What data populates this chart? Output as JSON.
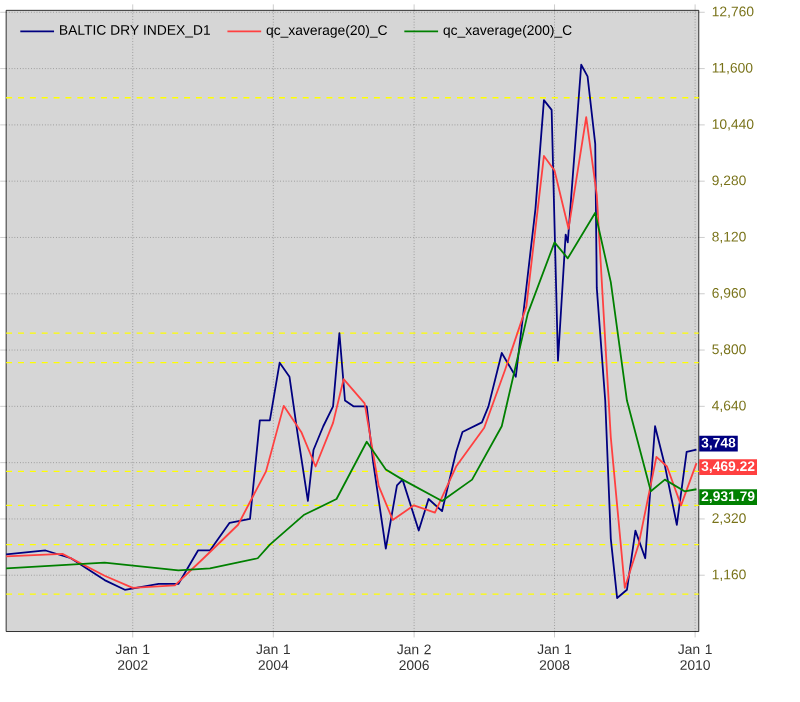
{
  "chart_data": {
    "type": "line",
    "xlim": [
      "2000-03-14",
      "2010-01-20"
    ],
    "ylim": [
      0,
      12800
    ],
    "xticks": [
      {
        "value": "2002-01-01",
        "label": "Jan 1 2002"
      },
      {
        "value": "2004-01-01",
        "label": "Jan 1 2004"
      },
      {
        "value": "2006-01-02",
        "label": "Jan 2 2006"
      },
      {
        "value": "2008-01-01",
        "label": "Jan 1 2008"
      },
      {
        "value": "2010-01-01",
        "label": "Jan 1 2010"
      }
    ],
    "yticks": [
      {
        "value": 1160,
        "label": "1,160"
      },
      {
        "value": 2320,
        "label": "2,320"
      },
      {
        "value": 3480,
        "label": null
      },
      {
        "value": 4640,
        "label": "4,640"
      },
      {
        "value": 5800,
        "label": "5,800"
      },
      {
        "value": 6960,
        "label": "6,960"
      },
      {
        "value": 8120,
        "label": "8,120"
      },
      {
        "value": 9280,
        "label": "9,280"
      },
      {
        "value": 10440,
        "label": "10,440"
      },
      {
        "value": 11600,
        "label": "11,600"
      },
      {
        "value": 12760,
        "label": "12,760"
      }
    ],
    "grid": true,
    "legend": "top left",
    "series": [
      {
        "name": "BALTIC DRY INDEX_D1",
        "color": "#000080",
        "x": [
          "2000-03-14",
          "2000-10-05",
          "2001-02-14",
          "2001-08-08",
          "2001-11-21",
          "2002-05-16",
          "2002-08-26",
          "2002-12-06",
          "2003-02-06",
          "2003-05-19",
          "2003-09-02",
          "2003-10-23",
          "2003-12-14",
          "2004-02-03",
          "2004-03-25",
          "2004-05-05",
          "2004-06-29",
          "2004-07-28",
          "2004-09-17",
          "2004-11-07",
          "2004-12-10",
          "2005-01-08",
          "2005-02-21",
          "2005-05-01",
          "2005-06-03",
          "2005-08-08",
          "2005-10-05",
          "2005-11-03",
          "2006-01-26",
          "2006-03-18",
          "2006-05-27",
          "2006-08-08",
          "2006-09-10",
          "2006-12-20",
          "2007-01-23",
          "2007-04-02",
          "2007-06-14",
          "2007-08-04",
          "2007-09-24",
          "2007-11-07",
          "2007-12-17",
          "2008-01-19",
          "2008-02-28",
          "2008-03-10",
          "2008-05-19",
          "2008-06-21",
          "2008-07-31",
          "2008-08-08",
          "2008-09-21",
          "2008-10-20",
          "2008-11-22",
          "2009-01-12",
          "2009-02-25",
          "2009-04-17",
          "2009-06-07",
          "2009-07-28",
          "2009-09-28",
          "2009-11-18",
          "2010-01-08"
        ],
        "values": [
          1590,
          1670,
          1510,
          1060,
          860,
          980,
          980,
          1670,
          1670,
          2240,
          2320,
          4350,
          4350,
          5540,
          5250,
          4110,
          2690,
          3740,
          4230,
          4640,
          6150,
          4760,
          4640,
          4640,
          3500,
          1710,
          3010,
          3130,
          2080,
          2730,
          2480,
          3700,
          4110,
          4310,
          4640,
          5740,
          5250,
          6960,
          8710,
          10950,
          10750,
          5580,
          8180,
          8020,
          11680,
          11440,
          10050,
          7080,
          4760,
          1910,
          690,
          860,
          2080,
          1510,
          4230,
          3420,
          2200,
          3700,
          3748
        ]
      },
      {
        "name": "qc_xaverage(20)_C",
        "color": "#ff4040",
        "x": [
          "2000-03-14",
          "2001-01-01",
          "2001-08-08",
          "2002-01-01",
          "2002-08-08",
          "2003-01-01",
          "2003-07-02",
          "2003-11-24",
          "2004-02-24",
          "2004-05-27",
          "2004-08-08",
          "2004-11-07",
          "2005-01-01",
          "2005-04-20",
          "2005-07-02",
          "2005-09-13",
          "2006-01-01",
          "2006-04-20",
          "2006-08-08",
          "2007-01-01",
          "2007-04-20",
          "2007-08-08",
          "2007-11-07",
          "2008-01-01",
          "2008-03-14",
          "2008-06-14",
          "2008-08-08",
          "2008-10-20",
          "2009-01-01",
          "2009-03-14",
          "2009-06-14",
          "2009-08-08",
          "2009-10-20",
          "2010-01-08"
        ],
        "values": [
          1550,
          1600,
          1150,
          900,
          950,
          1500,
          2200,
          3300,
          4650,
          4100,
          3400,
          4300,
          5200,
          4700,
          3000,
          2300,
          2600,
          2450,
          3400,
          4200,
          5400,
          6700,
          9800,
          9500,
          8300,
          10600,
          9000,
          4000,
          900,
          1800,
          3600,
          3400,
          2600,
          3469.22
        ]
      },
      {
        "name": "qc_xaverage(200)_C",
        "color": "#008000",
        "x": [
          "2000-03-14",
          "2001-08-08",
          "2002-08-26",
          "2003-02-06",
          "2003-10-12",
          "2003-12-14",
          "2004-06-07",
          "2004-11-25",
          "2005-05-01",
          "2005-08-08",
          "2005-11-03",
          "2006-05-27",
          "2006-10-30",
          "2007-04-02",
          "2007-08-15",
          "2008-01-01",
          "2008-03-10",
          "2008-07-31",
          "2008-10-20",
          "2009-01-12",
          "2009-05-16",
          "2009-07-28",
          "2009-11-07",
          "2010-01-08"
        ],
        "values": [
          1300,
          1420,
          1260,
          1300,
          1510,
          1790,
          2400,
          2730,
          3910,
          3340,
          3130,
          2690,
          3130,
          4230,
          6550,
          8020,
          7690,
          8630,
          7200,
          4760,
          2890,
          3130,
          2890,
          2931.79
        ]
      }
    ],
    "ref_lines": [
      {
        "axis": "y",
        "value": 11000,
        "color": "#ffff00",
        "line_style": "dashed"
      },
      {
        "axis": "y",
        "value": 6150,
        "color": "#ffff00",
        "line_style": "dashed"
      },
      {
        "axis": "y",
        "value": 5540,
        "color": "#ffff00",
        "line_style": "dashed"
      },
      {
        "axis": "y",
        "value": 3300,
        "color": "#ffff00",
        "line_style": "dashed"
      },
      {
        "axis": "y",
        "value": 2600,
        "color": "#ffff00",
        "line_style": "dashed"
      },
      {
        "axis": "y",
        "value": 1790,
        "color": "#ffff00",
        "line_style": "dashed"
      },
      {
        "axis": "y",
        "value": 770,
        "color": "#ffff00",
        "line_style": "dashed"
      }
    ],
    "annotations": [
      "3,748",
      "3,469.22",
      "2,931.79"
    ]
  }
}
